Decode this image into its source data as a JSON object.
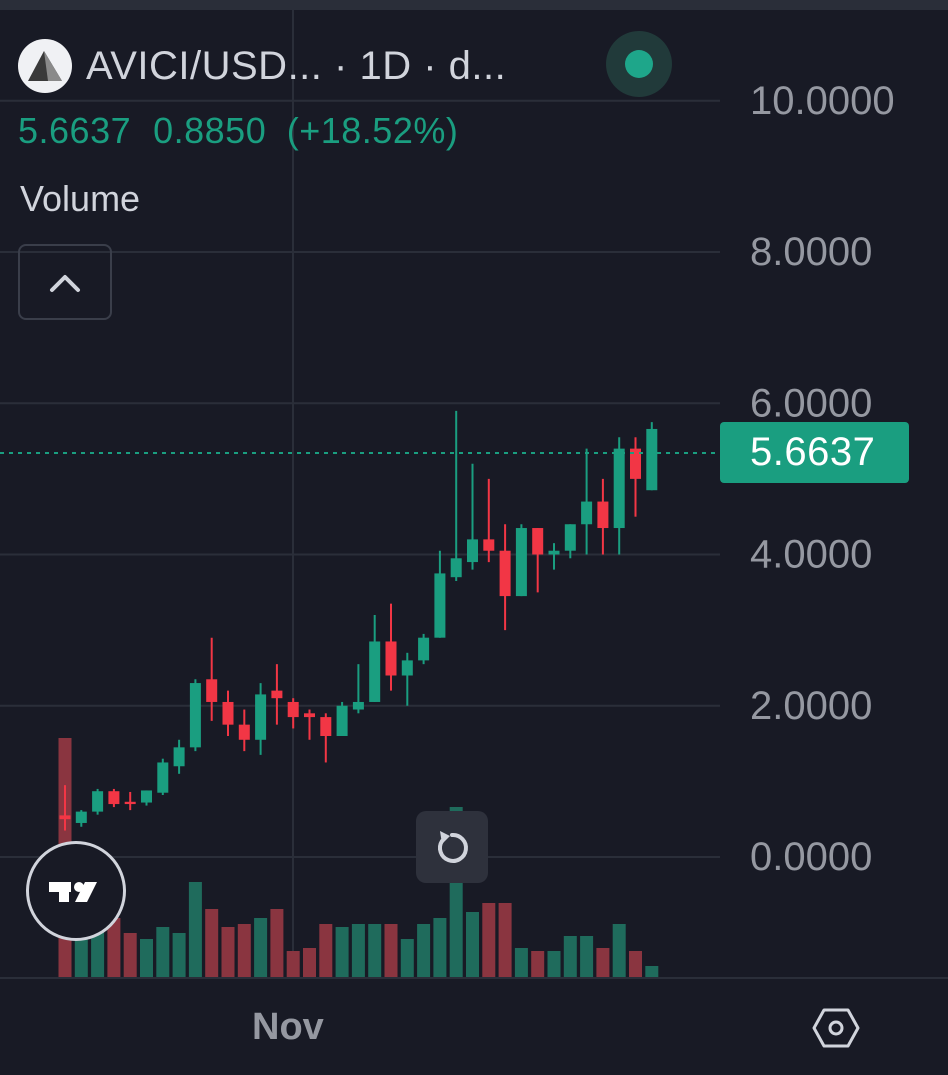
{
  "header": {
    "title": "AVICI/USD... · 1D · d...",
    "last_price": "5.6637",
    "change": "0.8850",
    "change_pct": "(+18.52%)",
    "volume_label": "Volume"
  },
  "colors": {
    "background": "#181a25",
    "up": "#1a9e80",
    "down": "#f23645",
    "vol_up": "#1f6b5c",
    "vol_down": "#8a3540",
    "grid": "#2a2e39",
    "text_muted": "#9598a1"
  },
  "icons": [
    "avici-logo-icon",
    "status-dot-icon",
    "chevron-up-icon",
    "reset-icon",
    "tradingview-logo-icon",
    "settings-hexagon-icon"
  ],
  "current_price_label": "5.6637",
  "x_axis": {
    "month_label": "Nov"
  },
  "chart_data": {
    "type": "candlestick",
    "interval": "1D",
    "y_ticks": [
      "0.0000",
      "2.0000",
      "4.0000",
      "6.0000",
      "8.0000",
      "10.0000"
    ],
    "ylim": [
      -1.6,
      11.2
    ],
    "last_price": 5.6637,
    "candles": [
      {
        "o": 0.55,
        "h": 0.95,
        "l": 0.35,
        "c": 0.5
      },
      {
        "o": 0.45,
        "h": 0.62,
        "l": 0.4,
        "c": 0.6
      },
      {
        "o": 0.6,
        "h": 0.9,
        "l": 0.56,
        "c": 0.87
      },
      {
        "o": 0.87,
        "h": 0.9,
        "l": 0.66,
        "c": 0.7
      },
      {
        "o": 0.73,
        "h": 0.86,
        "l": 0.62,
        "c": 0.7
      },
      {
        "o": 0.72,
        "h": 0.88,
        "l": 0.68,
        "c": 0.88
      },
      {
        "o": 0.85,
        "h": 1.3,
        "l": 0.82,
        "c": 1.25
      },
      {
        "o": 1.2,
        "h": 1.55,
        "l": 1.1,
        "c": 1.45
      },
      {
        "o": 1.45,
        "h": 2.35,
        "l": 1.4,
        "c": 2.3
      },
      {
        "o": 2.35,
        "h": 2.9,
        "l": 1.8,
        "c": 2.05
      },
      {
        "o": 2.05,
        "h": 2.2,
        "l": 1.6,
        "c": 1.75
      },
      {
        "o": 1.75,
        "h": 1.95,
        "l": 1.4,
        "c": 1.55
      },
      {
        "o": 1.55,
        "h": 2.3,
        "l": 1.35,
        "c": 2.15
      },
      {
        "o": 2.2,
        "h": 2.55,
        "l": 1.75,
        "c": 2.1
      },
      {
        "o": 2.05,
        "h": 2.1,
        "l": 1.7,
        "c": 1.85
      },
      {
        "o": 1.9,
        "h": 1.95,
        "l": 1.55,
        "c": 1.85
      },
      {
        "o": 1.85,
        "h": 1.9,
        "l": 1.25,
        "c": 1.6
      },
      {
        "o": 1.6,
        "h": 2.05,
        "l": 1.6,
        "c": 2.0
      },
      {
        "o": 1.95,
        "h": 2.55,
        "l": 1.9,
        "c": 2.05
      },
      {
        "o": 2.05,
        "h": 3.2,
        "l": 2.05,
        "c": 2.85
      },
      {
        "o": 2.85,
        "h": 3.35,
        "l": 2.2,
        "c": 2.4
      },
      {
        "o": 2.4,
        "h": 2.7,
        "l": 2.0,
        "c": 2.6
      },
      {
        "o": 2.6,
        "h": 2.95,
        "l": 2.55,
        "c": 2.9
      },
      {
        "o": 2.9,
        "h": 4.05,
        "l": 2.9,
        "c": 3.75
      },
      {
        "o": 3.7,
        "h": 5.9,
        "l": 3.65,
        "c": 3.95
      },
      {
        "o": 3.9,
        "h": 5.2,
        "l": 3.8,
        "c": 4.2
      },
      {
        "o": 4.2,
        "h": 5.0,
        "l": 3.9,
        "c": 4.05
      },
      {
        "o": 4.05,
        "h": 4.4,
        "l": 3.0,
        "c": 3.45
      },
      {
        "o": 3.45,
        "h": 4.4,
        "l": 3.45,
        "c": 4.35
      },
      {
        "o": 4.35,
        "h": 4.35,
        "l": 3.5,
        "c": 4.0
      },
      {
        "o": 4.0,
        "h": 4.15,
        "l": 3.8,
        "c": 4.05
      },
      {
        "o": 4.05,
        "h": 4.4,
        "l": 3.95,
        "c": 4.4
      },
      {
        "o": 4.4,
        "h": 5.4,
        "l": 4.0,
        "c": 4.7
      },
      {
        "o": 4.7,
        "h": 5.0,
        "l": 4.0,
        "c": 4.35
      },
      {
        "o": 4.35,
        "h": 5.55,
        "l": 4.0,
        "c": 5.4
      },
      {
        "o": 5.4,
        "h": 5.55,
        "l": 4.5,
        "c": 5.0
      },
      {
        "o": 4.85,
        "h": 5.75,
        "l": 4.85,
        "c": 5.66
      }
    ],
    "volume": [
      {
        "v": 0.8,
        "up": false
      },
      {
        "v": 0.17,
        "up": true
      },
      {
        "v": 0.21,
        "up": true
      },
      {
        "v": 0.2,
        "up": false
      },
      {
        "v": 0.15,
        "up": false
      },
      {
        "v": 0.13,
        "up": true
      },
      {
        "v": 0.17,
        "up": true
      },
      {
        "v": 0.15,
        "up": true
      },
      {
        "v": 0.32,
        "up": true
      },
      {
        "v": 0.23,
        "up": false
      },
      {
        "v": 0.17,
        "up": false
      },
      {
        "v": 0.18,
        "up": false
      },
      {
        "v": 0.2,
        "up": true
      },
      {
        "v": 0.23,
        "up": false
      },
      {
        "v": 0.09,
        "up": false
      },
      {
        "v": 0.1,
        "up": false
      },
      {
        "v": 0.18,
        "up": false
      },
      {
        "v": 0.17,
        "up": true
      },
      {
        "v": 0.18,
        "up": true
      },
      {
        "v": 0.18,
        "up": true
      },
      {
        "v": 0.18,
        "up": false
      },
      {
        "v": 0.13,
        "up": true
      },
      {
        "v": 0.18,
        "up": true
      },
      {
        "v": 0.2,
        "up": true
      },
      {
        "v": 0.57,
        "up": true
      },
      {
        "v": 0.22,
        "up": true
      },
      {
        "v": 0.25,
        "up": false
      },
      {
        "v": 0.25,
        "up": false
      },
      {
        "v": 0.1,
        "up": true
      },
      {
        "v": 0.09,
        "up": false
      },
      {
        "v": 0.09,
        "up": true
      },
      {
        "v": 0.14,
        "up": true
      },
      {
        "v": 0.14,
        "up": true
      },
      {
        "v": 0.1,
        "up": false
      },
      {
        "v": 0.18,
        "up": true
      },
      {
        "v": 0.09,
        "up": false
      },
      {
        "v": 0.04,
        "up": true
      }
    ]
  }
}
